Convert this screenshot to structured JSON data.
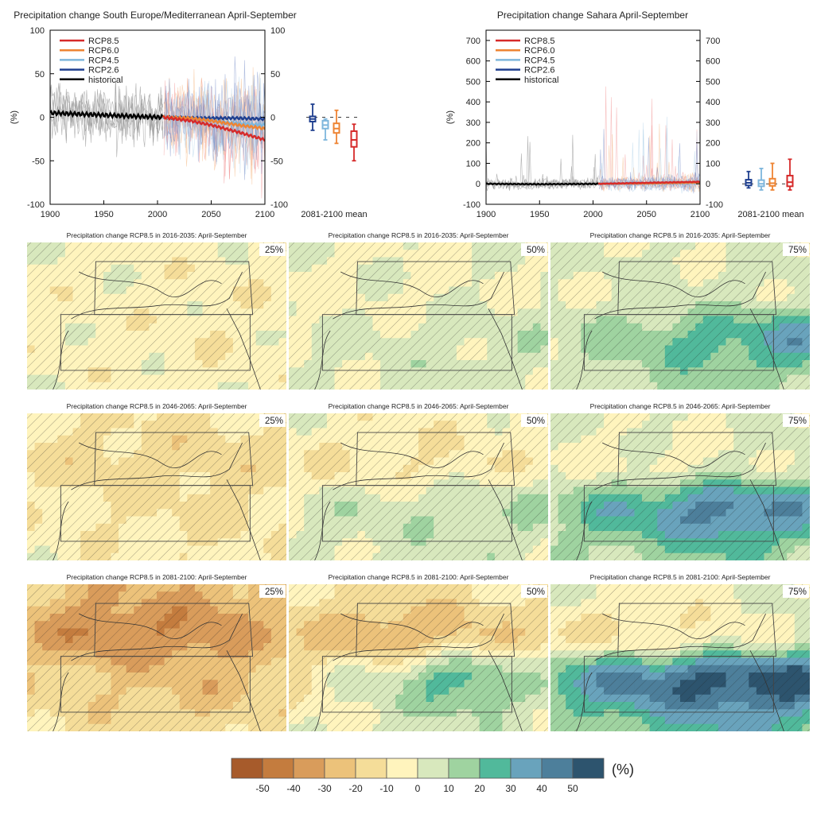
{
  "chart_data": [
    {
      "type": "line",
      "title": "Precipitation change South Europe/Mediterranean April-September",
      "ylabel": "(%)",
      "xlim": [
        1900,
        2100
      ],
      "ylim": [
        -100,
        100
      ],
      "xticks": [
        "1900",
        "1950",
        "2000",
        "2050",
        "2100"
      ],
      "yticks": [
        "-100",
        "-50",
        "0",
        "50",
        "100"
      ],
      "legend": {
        "placement": "top-left",
        "entries": [
          "RCP8.5",
          "RCP6.0",
          "RCP4.5",
          "RCP2.6",
          "historical"
        ]
      },
      "series": [
        {
          "name": "historical",
          "color": "#000000",
          "x": [
            1900,
            1920,
            1940,
            1960,
            1980,
            2005
          ],
          "values": [
            5,
            4,
            3,
            2,
            1,
            0
          ]
        },
        {
          "name": "RCP2.6",
          "color": "#1f3f8f",
          "x": [
            2005,
            2030,
            2050,
            2075,
            2100
          ],
          "values": [
            0,
            -1,
            -1,
            -1,
            -2
          ]
        },
        {
          "name": "RCP4.5",
          "color": "#7eb6dc",
          "x": [
            2005,
            2030,
            2050,
            2075,
            2100
          ],
          "values": [
            0,
            -2,
            -4,
            -7,
            -9
          ]
        },
        {
          "name": "RCP6.0",
          "color": "#ee8433",
          "x": [
            2005,
            2030,
            2050,
            2075,
            2100
          ],
          "values": [
            0,
            -1,
            -4,
            -9,
            -13
          ]
        },
        {
          "name": "RCP8.5",
          "color": "#d62a2a",
          "x": [
            2005,
            2030,
            2050,
            2075,
            2100
          ],
          "values": [
            0,
            -4,
            -9,
            -17,
            -26
          ]
        }
      ],
      "boxplots": {
        "label": "2081-2100 mean",
        "entries": [
          {
            "scenario": "RCP2.6",
            "color": "#1f3f8f",
            "min": -15,
            "q1": -5,
            "median": -2,
            "q3": 1,
            "max": 15
          },
          {
            "scenario": "RCP4.5",
            "color": "#7eb6dc",
            "min": -26,
            "q1": -13,
            "median": -9,
            "q3": -4,
            "max": -2
          },
          {
            "scenario": "RCP6.0",
            "color": "#ee8433",
            "min": -30,
            "q1": -18,
            "median": -13,
            "q3": -7,
            "max": 8
          },
          {
            "scenario": "RCP8.5",
            "color": "#d62a2a",
            "min": -50,
            "q1": -34,
            "median": -26,
            "q3": -16,
            "max": -8
          }
        ]
      }
    },
    {
      "type": "line",
      "title": "Precipitation change Sahara April-September",
      "ylabel": "(%)",
      "xlim": [
        1900,
        2100
      ],
      "ylim": [
        -100,
        750
      ],
      "xticks": [
        "1900",
        "1950",
        "2000",
        "2050",
        "2100"
      ],
      "yticks": [
        "-100",
        "0",
        "100",
        "200",
        "300",
        "400",
        "500",
        "600",
        "700"
      ],
      "legend": {
        "placement": "top-left",
        "entries": [
          "RCP8.5",
          "RCP6.0",
          "RCP4.5",
          "RCP2.6",
          "historical"
        ]
      },
      "series": [
        {
          "name": "historical",
          "color": "#000000",
          "x": [
            1900,
            1950,
            2005
          ],
          "values": [
            0,
            -2,
            0
          ]
        },
        {
          "name": "RCP2.6",
          "color": "#1f3f8f",
          "x": [
            2005,
            2050,
            2100
          ],
          "values": [
            0,
            3,
            5
          ]
        },
        {
          "name": "RCP4.5",
          "color": "#7eb6dc",
          "x": [
            2005,
            2050,
            2100
          ],
          "values": [
            0,
            3,
            4
          ]
        },
        {
          "name": "RCP6.0",
          "color": "#ee8433",
          "x": [
            2005,
            2050,
            2100
          ],
          "values": [
            0,
            2,
            6
          ]
        },
        {
          "name": "RCP8.5",
          "color": "#d62a2a",
          "x": [
            2005,
            2050,
            2100
          ],
          "values": [
            0,
            5,
            10
          ]
        }
      ],
      "boxplots": {
        "label": "2081-2100 mean",
        "entries": [
          {
            "scenario": "RCP2.6",
            "color": "#1f3f8f",
            "min": -20,
            "q1": -8,
            "median": 5,
            "q3": 20,
            "max": 60
          },
          {
            "scenario": "RCP4.5",
            "color": "#7eb6dc",
            "min": -30,
            "q1": -12,
            "median": 0,
            "q3": 18,
            "max": 75
          },
          {
            "scenario": "RCP6.0",
            "color": "#ee8433",
            "min": -30,
            "q1": -10,
            "median": 3,
            "q3": 25,
            "max": 100
          },
          {
            "scenario": "RCP8.5",
            "color": "#d62a2a",
            "min": -30,
            "q1": -12,
            "median": 8,
            "q3": 40,
            "max": 120
          }
        ]
      }
    },
    {
      "type": "heatmap",
      "colorbar": {
        "unit": "(%)",
        "ticks": [
          "-50",
          "-40",
          "-30",
          "-20",
          "-10",
          "0",
          "10",
          "20",
          "30",
          "40",
          "50"
        ],
        "colors": [
          "#a75b2b",
          "#c47c3e",
          "#d99c5b",
          "#ecc27a",
          "#f5dd99",
          "#fff4bd",
          "#d8e8bd",
          "#9fd3a0",
          "#51b99b",
          "#69a3bc",
          "#4d7f9b",
          "#2d546e"
        ]
      },
      "maps": [
        {
          "title": "Precipitation change RCP8.5 in 2016-2035: April-September",
          "percentile": "25%",
          "levels": [
            [
              -3,
              -3,
              -4,
              -5
            ],
            [
              -4,
              -4,
              -6,
              -6
            ],
            [
              -4,
              -5,
              -7,
              -5
            ],
            [
              -2,
              -4,
              -5,
              -3
            ]
          ]
        },
        {
          "title": "Precipitation change RCP8.5 in 2016-2035: April-September",
          "percentile": "50%",
          "levels": [
            [
              -1,
              -1,
              -1,
              0
            ],
            [
              -2,
              -2,
              -1,
              0
            ],
            [
              1,
              2,
              5,
              6
            ],
            [
              0,
              2,
              4,
              2
            ]
          ]
        },
        {
          "title": "Precipitation change RCP8.5 in 2016-2035: April-September",
          "percentile": "75%",
          "levels": [
            [
              2,
              1,
              1,
              2
            ],
            [
              1,
              2,
              3,
              4
            ],
            [
              5,
              15,
              25,
              35
            ],
            [
              2,
              8,
              15,
              8
            ]
          ]
        },
        {
          "title": "Precipitation change RCP8.5 in 2046-2065: April-September",
          "percentile": "25%",
          "levels": [
            [
              -8,
              -10,
              -12,
              -10
            ],
            [
              -12,
              -15,
              -16,
              -12
            ],
            [
              -6,
              -10,
              -12,
              -12
            ],
            [
              -4,
              -6,
              -8,
              -6
            ]
          ]
        },
        {
          "title": "Precipitation change RCP8.5 in 2046-2065: April-September",
          "percentile": "50%",
          "levels": [
            [
              -3,
              -5,
              -6,
              -4
            ],
            [
              -8,
              -10,
              -9,
              -5
            ],
            [
              3,
              6,
              8,
              10
            ],
            [
              1,
              3,
              4,
              3
            ]
          ]
        },
        {
          "title": "Precipitation change RCP8.5 in 2046-2065: April-September",
          "percentile": "75%",
          "levels": [
            [
              1,
              1,
              0,
              2
            ],
            [
              -1,
              -3,
              0,
              4
            ],
            [
              15,
              30,
              45,
              35
            ],
            [
              5,
              12,
              18,
              10
            ]
          ]
        },
        {
          "title": "Precipitation change RCP8.5 in 2081-2100: April-September",
          "percentile": "25%",
          "levels": [
            [
              -20,
              -28,
              -28,
              -22
            ],
            [
              -30,
              -40,
              -38,
              -25
            ],
            [
              -15,
              -20,
              -25,
              -20
            ],
            [
              -10,
              -14,
              -16,
              -12
            ]
          ]
        },
        {
          "title": "Precipitation change RCP8.5 in 2081-2100: April-September",
          "percentile": "50%",
          "levels": [
            [
              -8,
              -12,
              -12,
              -8
            ],
            [
              -18,
              -28,
              -22,
              -12
            ],
            [
              -12,
              5,
              25,
              5
            ],
            [
              -5,
              3,
              6,
              3
            ]
          ]
        },
        {
          "title": "Precipitation change RCP8.5 in 2081-2100: April-September",
          "percentile": "75%",
          "levels": [
            [
              0,
              -2,
              -2,
              2
            ],
            [
              -8,
              -12,
              -6,
              3
            ],
            [
              25,
              45,
              55,
              55
            ],
            [
              10,
              20,
              30,
              25
            ]
          ]
        }
      ]
    }
  ]
}
